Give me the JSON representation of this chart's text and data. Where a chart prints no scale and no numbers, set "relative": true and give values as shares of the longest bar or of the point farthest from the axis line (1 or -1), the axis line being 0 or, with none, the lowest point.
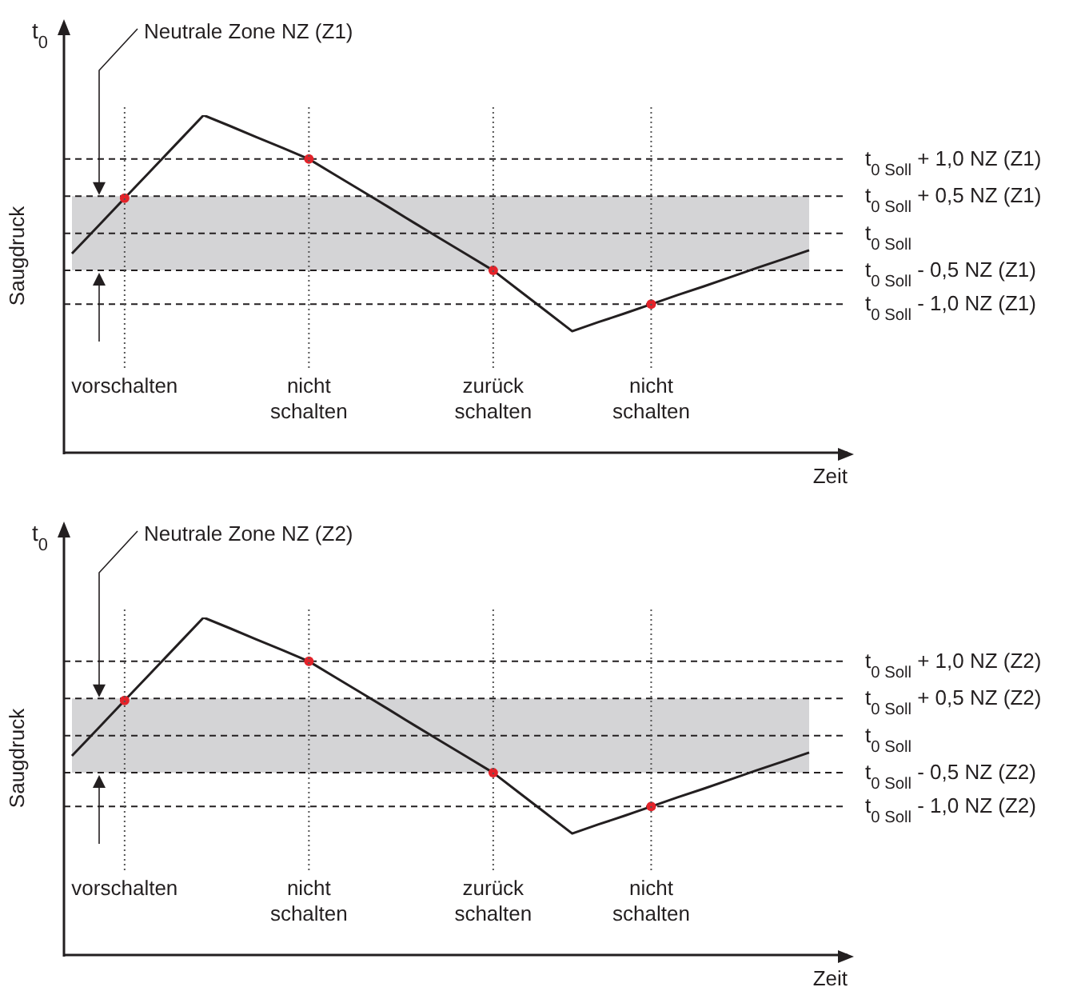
{
  "chart_data": [
    {
      "type": "line",
      "relative": true,
      "xlabel": "Zeit",
      "ylabel": "Saugdruck",
      "grid": "x",
      "annotations": [
        "t$_{0}$",
        "Neutrale Zone NZ (Z1)"
      ],
      "categories": [
        null,
        null,
        "vorschalten",
        null,
        null,
        null,
        null,
        null,
        null,
        "nicht schalten",
        null,
        null,
        null,
        null,
        null,
        null,
        "zurück schalten",
        null,
        null,
        null,
        null,
        null,
        "nicht schalten",
        null,
        null,
        null,
        null,
        null,
        null
      ],
      "series": [
        {
          "type": "line",
          "color": "#231f20",
          "values": [
            0.59,
            0.672,
            0.754,
            0.836,
            0.918,
            1,
            0.968,
            0.935,
            0.903,
            0.87,
            0.823,
            0.776,
            0.729,
            0.681,
            0.634,
            0.587,
            0.54,
            0.48,
            0.42,
            0.36,
            0.387,
            0.413,
            0.44,
            0.467,
            0.493,
            0.52,
            0.547,
            0.573,
            0.6
          ]
        },
        {
          "type": "scatter",
          "color": "#e3232a",
          "values": [
            null,
            null,
            0.754,
            null,
            null,
            null,
            null,
            null,
            null,
            0.87,
            null,
            null,
            null,
            null,
            null,
            null,
            0.54,
            null,
            null,
            null,
            null,
            null,
            0.44,
            null,
            null,
            null,
            null,
            null,
            null
          ]
        }
      ],
      "bands": [
        {
          "axis": "y",
          "from": 0.54,
          "to": 0.76,
          "color": "#d4d4d6"
        }
      ],
      "ref_lines": [
        {
          "axis": "y",
          "value": 0.87,
          "label": "t$_{0 Soll}$ + 1,0 NZ (Z1)",
          "line_style": "dashed"
        },
        {
          "axis": "y",
          "value": 0.76,
          "label": "t$_{0 Soll}$ + 0,5 NZ (Z1)",
          "line_style": "dashed"
        },
        {
          "axis": "y",
          "value": 0.65,
          "label": "t$_{0 Soll}$",
          "line_style": "dashed"
        },
        {
          "axis": "y",
          "value": 0.54,
          "label": "t$_{0 Soll}$ - 0,5 NZ (Z1)",
          "line_style": "dashed"
        },
        {
          "axis": "y",
          "value": 0.44,
          "label": "t$_{0 Soll}$ - 1,0 NZ (Z1)",
          "line_style": "dashed"
        }
      ]
    },
    {
      "type": "line",
      "relative": true,
      "xlabel": "Zeit",
      "ylabel": "Saugdruck",
      "grid": "x",
      "annotations": [
        "t$_{0}$",
        "Neutrale Zone NZ (Z2)"
      ],
      "categories": [
        null,
        null,
        "vorschalten",
        null,
        null,
        null,
        null,
        null,
        null,
        "nicht schalten",
        null,
        null,
        null,
        null,
        null,
        null,
        "zurück schalten",
        null,
        null,
        null,
        null,
        null,
        "nicht schalten",
        null,
        null,
        null,
        null,
        null,
        null
      ],
      "series": [
        {
          "type": "line",
          "color": "#231f20",
          "values": [
            0.59,
            0.672,
            0.754,
            0.836,
            0.918,
            1,
            0.968,
            0.935,
            0.903,
            0.87,
            0.823,
            0.776,
            0.729,
            0.681,
            0.634,
            0.587,
            0.54,
            0.48,
            0.42,
            0.36,
            0.387,
            0.413,
            0.44,
            0.467,
            0.493,
            0.52,
            0.547,
            0.573,
            0.6
          ]
        },
        {
          "type": "scatter",
          "color": "#e3232a",
          "values": [
            null,
            null,
            0.754,
            null,
            null,
            null,
            null,
            null,
            null,
            0.87,
            null,
            null,
            null,
            null,
            null,
            null,
            0.54,
            null,
            null,
            null,
            null,
            null,
            0.44,
            null,
            null,
            null,
            null,
            null,
            null
          ]
        }
      ],
      "bands": [
        {
          "axis": "y",
          "from": 0.54,
          "to": 0.76,
          "color": "#d4d4d6"
        }
      ],
      "ref_lines": [
        {
          "axis": "y",
          "value": 0.87,
          "label": "t$_{0 Soll}$ + 1,0 NZ (Z2)",
          "line_style": "dashed"
        },
        {
          "axis": "y",
          "value": 0.76,
          "label": "t$_{0 Soll}$ + 0,5 NZ (Z2)",
          "line_style": "dashed"
        },
        {
          "axis": "y",
          "value": 0.65,
          "label": "t$_{0 Soll}$",
          "line_style": "dashed"
        },
        {
          "axis": "y",
          "value": 0.54,
          "label": "t$_{0 Soll}$ - 0,5 NZ (Z2)",
          "line_style": "dashed"
        },
        {
          "axis": "y",
          "value": 0.44,
          "label": "t$_{0 Soll}$ - 1,0 NZ (Z2)",
          "line_style": "dashed"
        }
      ]
    }
  ]
}
